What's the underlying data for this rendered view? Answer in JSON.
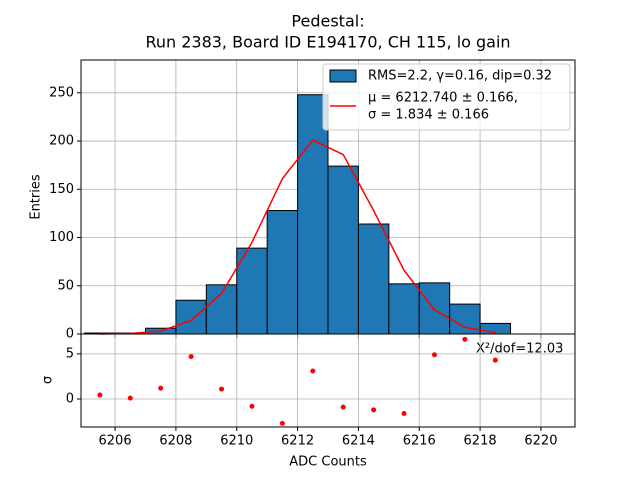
{
  "chart_data": [
    {
      "type": "histogram",
      "title": "Pedestal:",
      "subtitle": "Run 2383, Board ID E194170, CH 115, lo gain",
      "ylabel": "Entries",
      "bins": [
        6205,
        6206,
        6207,
        6208,
        6209,
        6210,
        6211,
        6212,
        6213,
        6214,
        6215,
        6216,
        6217,
        6218,
        6219
      ],
      "counts": [
        1,
        1,
        6,
        35,
        51,
        89,
        128,
        248,
        174,
        114,
        52,
        53,
        31,
        11
      ],
      "name": "RMS=2.2, γ=0.16, dip=0.32",
      "color": "#1f77b4",
      "series": [
        {
          "name": [
            "μ = 6212.740 ± 0.166,",
            "σ = 1.834 ± 0.166"
          ],
          "color": "#ff0000",
          "x": [
            6205.5,
            6206.5,
            6207.5,
            6208.5,
            6209.5,
            6210.5,
            6211.5,
            6212.5,
            6213.5,
            6214.5,
            6215.5,
            6216.5,
            6217.5,
            6218.5
          ],
          "values": [
            0,
            0.5,
            3,
            14,
            42,
            95,
            161,
            201,
            186,
            128,
            66,
            25,
            7,
            1.5
          ]
        }
      ],
      "xlim": [
        6204.88,
        6221.12
      ],
      "xticks": [
        6206,
        6208,
        6210,
        6212,
        6214,
        6216,
        6218,
        6220
      ],
      "ylim": [
        0,
        284
      ],
      "yticks": [
        0,
        50,
        100,
        150,
        200,
        250
      ],
      "grid": true,
      "legend": "upper right"
    },
    {
      "type": "scatter",
      "xlabel": "ADC Counts",
      "ylabel": "σ",
      "annotation": "Χ²/dof=12.03",
      "color": "#ff0000",
      "x": [
        6205.5,
        6206.5,
        6207.5,
        6208.5,
        6209.5,
        6210.5,
        6211.5,
        6212.5,
        6213.5,
        6214.5,
        6215.5,
        6216.5,
        6217.5,
        6218.5
      ],
      "values": [
        0.44,
        0.1,
        1.2,
        4.7,
        1.1,
        -0.8,
        -2.7,
        3.1,
        -0.9,
        -1.2,
        -1.6,
        4.9,
        6.6,
        4.3
      ],
      "xlim": [
        6204.88,
        6221.12
      ],
      "xticks": [
        6206,
        6208,
        6210,
        6212,
        6214,
        6216,
        6218,
        6220
      ],
      "ylim": [
        -3.1,
        7.2
      ],
      "yticks": [
        0,
        5
      ],
      "grid": true
    }
  ]
}
